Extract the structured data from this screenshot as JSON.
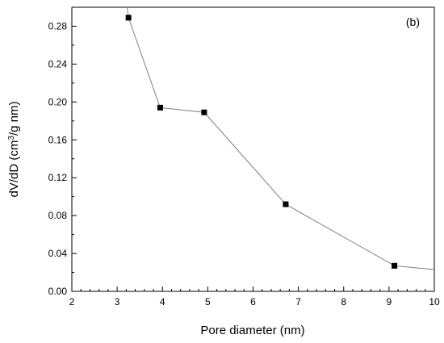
{
  "chart_data": {
    "type": "line",
    "panel_label": "(b)",
    "xlabel": "Pore diameter (nm)",
    "ylabel_main": "dV/dD (cm",
    "ylabel_sup": "3",
    "ylabel_rest": "/g nm)",
    "xlim": [
      2,
      10
    ],
    "ylim": [
      0.0,
      0.3
    ],
    "x_ticks": [
      2,
      3,
      4,
      5,
      6,
      7,
      8,
      9,
      10
    ],
    "x_tick_labels": [
      "2",
      "3",
      "4",
      "5",
      "6",
      "7",
      "8",
      "9",
      "10"
    ],
    "y_ticks": [
      0.0,
      0.04,
      0.08,
      0.12,
      0.16,
      0.2,
      0.24,
      0.28
    ],
    "y_tick_labels": [
      "0.00",
      "0.04",
      "0.08",
      "0.12",
      "0.16",
      "0.20",
      "0.24",
      "0.28"
    ],
    "grid": false,
    "series": [
      {
        "x": [
          3.25,
          3.95,
          4.92,
          6.72,
          9.12
        ],
        "y": [
          0.289,
          0.194,
          0.189,
          0.092,
          0.027
        ],
        "line_start": [
          3.22,
          0.305
        ],
        "line_end": [
          10.0,
          0.023
        ],
        "marker": "square",
        "color": "#000000",
        "line_color": "#808080"
      }
    ]
  }
}
